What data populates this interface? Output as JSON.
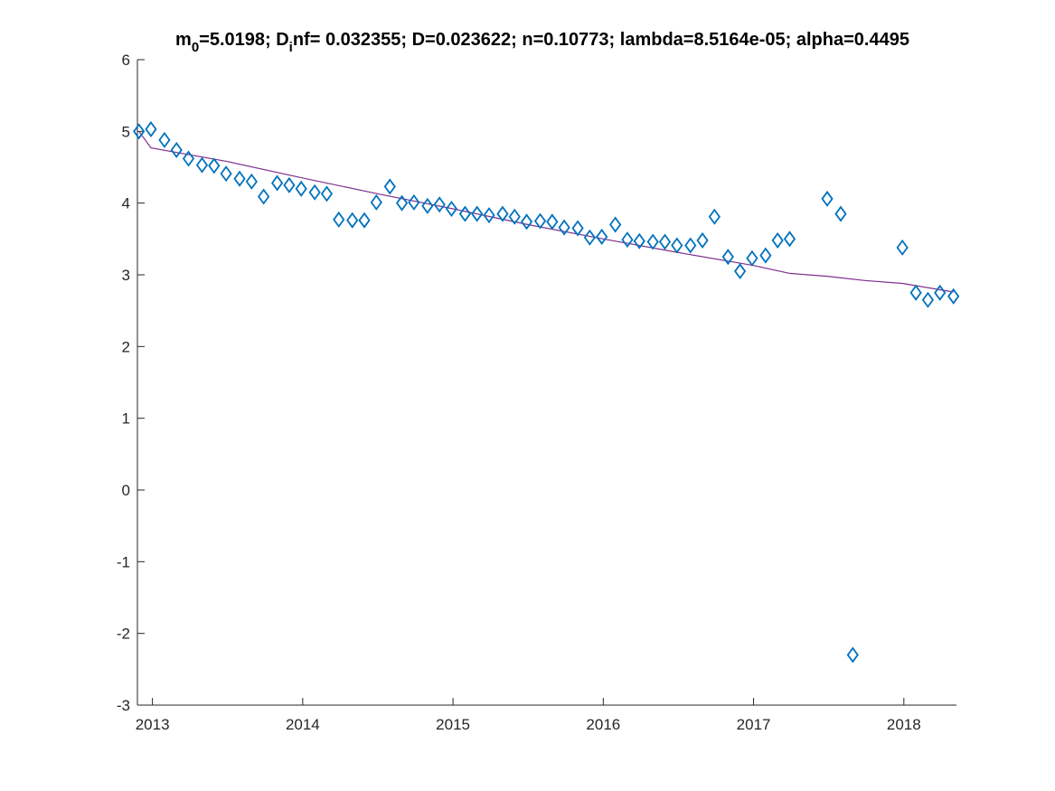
{
  "chart_data": {
    "type": "scatter",
    "title": {
      "m_base": "m",
      "m_sub": "0",
      "m_rest": "=5.0198; D",
      "d_sub": "i",
      "rest": "nf= 0.032355; D=0.023622; n=0.10773; lambda=8.5164e-05; alpha=0.4495"
    },
    "xlabel": "",
    "ylabel": "",
    "xlim": [
      2012.9,
      2018.35
    ],
    "ylim": [
      -3,
      6
    ],
    "x_ticks": [
      2013,
      2014,
      2015,
      2016,
      2017,
      2018
    ],
    "x_tick_labels": [
      "2013",
      "2014",
      "2015",
      "2016",
      "2017",
      "2018"
    ],
    "y_ticks": [
      -3,
      -2,
      -1,
      0,
      1,
      2,
      3,
      4,
      5,
      6
    ],
    "y_tick_labels": [
      "-3",
      "-2",
      "-1",
      "0",
      "1",
      "2",
      "3",
      "4",
      "5",
      "6"
    ],
    "grid": false,
    "series": [
      {
        "type": "scatter",
        "marker": "diamond",
        "color": "#0072BD",
        "points": [
          [
            2012.91,
            5.0
          ],
          [
            2012.99,
            5.03
          ],
          [
            2013.08,
            4.88
          ],
          [
            2013.16,
            4.74
          ],
          [
            2013.24,
            4.62
          ],
          [
            2013.33,
            4.53
          ],
          [
            2013.41,
            4.52
          ],
          [
            2013.49,
            4.41
          ],
          [
            2013.58,
            4.34
          ],
          [
            2013.66,
            4.3
          ],
          [
            2013.74,
            4.09
          ],
          [
            2013.83,
            4.28
          ],
          [
            2013.91,
            4.25
          ],
          [
            2013.99,
            4.2
          ],
          [
            2014.08,
            4.15
          ],
          [
            2014.16,
            4.13
          ],
          [
            2014.24,
            3.77
          ],
          [
            2014.33,
            3.76
          ],
          [
            2014.41,
            3.76
          ],
          [
            2014.49,
            4.01
          ],
          [
            2014.58,
            4.23
          ],
          [
            2014.66,
            4.0
          ],
          [
            2014.74,
            4.01
          ],
          [
            2014.83,
            3.96
          ],
          [
            2014.91,
            3.98
          ],
          [
            2014.99,
            3.92
          ],
          [
            2015.08,
            3.85
          ],
          [
            2015.16,
            3.85
          ],
          [
            2015.24,
            3.83
          ],
          [
            2015.33,
            3.85
          ],
          [
            2015.41,
            3.81
          ],
          [
            2015.49,
            3.74
          ],
          [
            2015.58,
            3.75
          ],
          [
            2015.66,
            3.74
          ],
          [
            2015.74,
            3.66
          ],
          [
            2015.83,
            3.65
          ],
          [
            2015.91,
            3.52
          ],
          [
            2015.99,
            3.53
          ],
          [
            2016.08,
            3.7
          ],
          [
            2016.16,
            3.49
          ],
          [
            2016.24,
            3.47
          ],
          [
            2016.33,
            3.46
          ],
          [
            2016.41,
            3.46
          ],
          [
            2016.49,
            3.41
          ],
          [
            2016.58,
            3.41
          ],
          [
            2016.66,
            3.48
          ],
          [
            2016.74,
            3.81
          ],
          [
            2016.83,
            3.25
          ],
          [
            2016.91,
            3.05
          ],
          [
            2016.99,
            3.23
          ],
          [
            2017.08,
            3.27
          ],
          [
            2017.16,
            3.48
          ],
          [
            2017.24,
            3.5
          ],
          [
            2017.49,
            4.06
          ],
          [
            2017.58,
            3.85
          ],
          [
            2017.66,
            -2.3
          ],
          [
            2017.99,
            3.38
          ],
          [
            2018.08,
            2.75
          ],
          [
            2018.16,
            2.65
          ],
          [
            2018.24,
            2.75
          ],
          [
            2018.33,
            2.7
          ]
        ]
      },
      {
        "type": "line",
        "color": "#7E2F8E",
        "points": [
          [
            2012.91,
            5.0
          ],
          [
            2012.99,
            4.77
          ],
          [
            2013.5,
            4.58
          ],
          [
            2014.0,
            4.35
          ],
          [
            2014.5,
            4.13
          ],
          [
            2015.0,
            3.92
          ],
          [
            2015.5,
            3.7
          ],
          [
            2016.0,
            3.5
          ],
          [
            2016.5,
            3.31
          ],
          [
            2017.0,
            3.13
          ],
          [
            2017.24,
            3.02
          ],
          [
            2017.49,
            2.98
          ],
          [
            2017.74,
            2.92
          ],
          [
            2017.99,
            2.88
          ],
          [
            2018.33,
            2.76
          ]
        ]
      }
    ]
  }
}
